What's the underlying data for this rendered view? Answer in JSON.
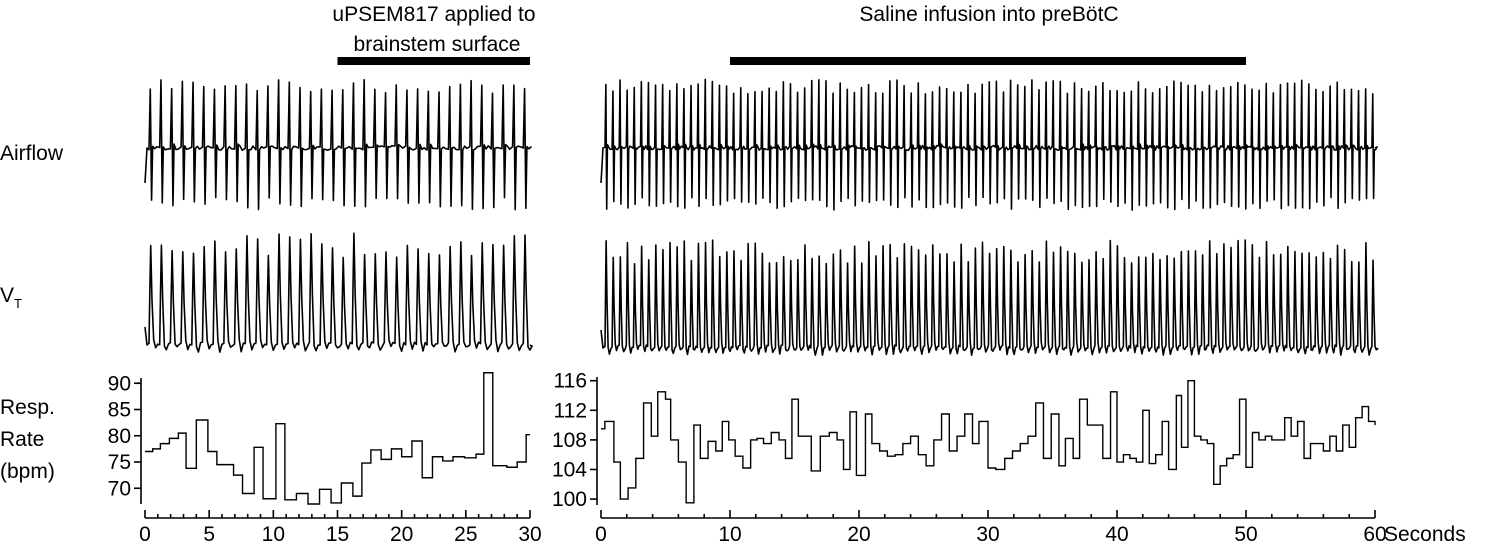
{
  "row_labels": {
    "airflow": "Airflow",
    "vt_main": "V",
    "vt_sub": "T",
    "rate_line1": "Resp.",
    "rate_line2": "Rate",
    "rate_line3": "(bpm)"
  },
  "annotations": {
    "left_line1": "uPSEM817 applied to",
    "left_line2": "brainstem surface",
    "right": "Saline infusion into preBötC"
  },
  "x_unit_label": "Seconds",
  "chart_data": [
    {
      "type": "line",
      "panel": "left",
      "x_range": [
        0,
        30
      ],
      "x_ticks": [
        0,
        5,
        10,
        15,
        20,
        25,
        30
      ],
      "annotation_bar_seconds": [
        15,
        30
      ],
      "resp_rate": {
        "y_range": [
          67,
          91
        ],
        "y_ticks": [
          70,
          75,
          80,
          85,
          90
        ],
        "steps": [
          [
            0,
            77
          ],
          [
            0.6,
            77.5
          ],
          [
            1.2,
            78.5
          ],
          [
            1.9,
            79.5
          ],
          [
            2.6,
            80.5
          ],
          [
            3.2,
            73.8
          ],
          [
            4.0,
            83
          ],
          [
            4.9,
            77
          ],
          [
            5.6,
            74.5
          ],
          [
            6.3,
            74.5
          ],
          [
            6.9,
            72.5
          ],
          [
            7.6,
            69
          ],
          [
            8.5,
            77.8
          ],
          [
            9.2,
            68
          ],
          [
            10.2,
            82.3
          ],
          [
            10.9,
            67.8
          ],
          [
            11.8,
            69
          ],
          [
            12.7,
            67
          ],
          [
            13.6,
            69.8
          ],
          [
            14.5,
            67.2
          ],
          [
            15.3,
            71
          ],
          [
            16.2,
            68.5
          ],
          [
            16.9,
            74.8
          ],
          [
            17.6,
            77.3
          ],
          [
            18.4,
            75.5
          ],
          [
            19.2,
            77.5
          ],
          [
            20.0,
            76
          ],
          [
            20.8,
            79
          ],
          [
            21.6,
            72
          ],
          [
            22.4,
            76
          ],
          [
            23.2,
            75.2
          ],
          [
            24.0,
            76
          ],
          [
            24.9,
            75.8
          ],
          [
            25.8,
            76.5
          ],
          [
            26.4,
            92
          ],
          [
            27.1,
            74.3
          ],
          [
            28.2,
            74
          ],
          [
            29.0,
            75
          ],
          [
            29.7,
            80.2
          ],
          [
            30,
            80.2
          ]
        ]
      }
    },
    {
      "type": "line",
      "panel": "right",
      "x_range": [
        0,
        60
      ],
      "x_ticks": [
        0,
        10,
        20,
        30,
        40,
        50,
        60
      ],
      "annotation_bar_seconds": [
        10,
        50
      ],
      "resp_rate": {
        "y_range": [
          99.2,
          116.5
        ],
        "y_ticks": [
          100,
          104,
          108,
          112,
          116
        ],
        "steps": [
          [
            0,
            109.5
          ],
          [
            0.3,
            110.5
          ],
          [
            1.0,
            105
          ],
          [
            1.5,
            100
          ],
          [
            2.1,
            101.5
          ],
          [
            2.7,
            105.5
          ],
          [
            3.3,
            113
          ],
          [
            3.9,
            108.5
          ],
          [
            4.4,
            114.5
          ],
          [
            5.0,
            113.5
          ],
          [
            5.4,
            108
          ],
          [
            6.0,
            105
          ],
          [
            6.6,
            99.5
          ],
          [
            7.2,
            110
          ],
          [
            7.7,
            105.5
          ],
          [
            8.3,
            107.8
          ],
          [
            8.9,
            106.5
          ],
          [
            9.4,
            110.5
          ],
          [
            9.9,
            108
          ],
          [
            10.4,
            105.8
          ],
          [
            11.0,
            104.2
          ],
          [
            11.6,
            108
          ],
          [
            12.1,
            108.2
          ],
          [
            12.6,
            107.5
          ],
          [
            13.2,
            109
          ],
          [
            13.8,
            108
          ],
          [
            14.3,
            105.5
          ],
          [
            14.8,
            113.5
          ],
          [
            15.3,
            108.5
          ],
          [
            16.3,
            103.8
          ],
          [
            17.0,
            108.5
          ],
          [
            17.7,
            109
          ],
          [
            18.3,
            108
          ],
          [
            18.8,
            104
          ],
          [
            19.3,
            111.8
          ],
          [
            19.8,
            103.2
          ],
          [
            20.5,
            111.5
          ],
          [
            21.0,
            107.5
          ],
          [
            21.6,
            106.5
          ],
          [
            22.2,
            105.8
          ],
          [
            22.8,
            106
          ],
          [
            23.4,
            107.5
          ],
          [
            24.0,
            108.5
          ],
          [
            24.6,
            106
          ],
          [
            25.2,
            104.5
          ],
          [
            25.8,
            108
          ],
          [
            26.4,
            111.5
          ],
          [
            27.0,
            106.5
          ],
          [
            27.6,
            108.5
          ],
          [
            28.2,
            111.5
          ],
          [
            28.8,
            107.5
          ],
          [
            29.3,
            110.5
          ],
          [
            30.0,
            104.2
          ],
          [
            30.6,
            104
          ],
          [
            31.3,
            105.5
          ],
          [
            31.9,
            106.5
          ],
          [
            32.5,
            107.5
          ],
          [
            33.1,
            108.5
          ],
          [
            33.7,
            113
          ],
          [
            34.3,
            105.5
          ],
          [
            34.9,
            111.5
          ],
          [
            35.5,
            104.5
          ],
          [
            36.0,
            108.2
          ],
          [
            36.6,
            105.5
          ],
          [
            37.1,
            113.5
          ],
          [
            37.7,
            110
          ],
          [
            38.3,
            110
          ],
          [
            38.9,
            105.5
          ],
          [
            39.5,
            114.5
          ],
          [
            40.0,
            105
          ],
          [
            40.5,
            106
          ],
          [
            41.0,
            105.5
          ],
          [
            41.5,
            105
          ],
          [
            42.0,
            112
          ],
          [
            42.5,
            104.8
          ],
          [
            43.0,
            106
          ],
          [
            43.5,
            110.5
          ],
          [
            44.0,
            104
          ],
          [
            44.6,
            114
          ],
          [
            45.0,
            107
          ],
          [
            45.5,
            116
          ],
          [
            46.0,
            108.5
          ],
          [
            46.5,
            108
          ],
          [
            47.0,
            107.5
          ],
          [
            47.5,
            102
          ],
          [
            48.0,
            104.5
          ],
          [
            48.5,
            105.5
          ],
          [
            49.0,
            106
          ],
          [
            49.5,
            113.5
          ],
          [
            50.0,
            104.3
          ],
          [
            50.5,
            109
          ],
          [
            51.0,
            108
          ],
          [
            51.5,
            108.5
          ],
          [
            52.0,
            108
          ],
          [
            52.5,
            108
          ],
          [
            53.0,
            111
          ],
          [
            53.5,
            108.5
          ],
          [
            54.0,
            110.5
          ],
          [
            54.5,
            105.5
          ],
          [
            55.0,
            107.5
          ],
          [
            55.5,
            107.5
          ],
          [
            56.0,
            106.5
          ],
          [
            56.5,
            108.5
          ],
          [
            57.0,
            106.5
          ],
          [
            57.5,
            110
          ],
          [
            58.0,
            107
          ],
          [
            58.5,
            111
          ],
          [
            59.0,
            112.5
          ],
          [
            59.5,
            110.5
          ],
          [
            60,
            110
          ]
        ]
      }
    }
  ]
}
